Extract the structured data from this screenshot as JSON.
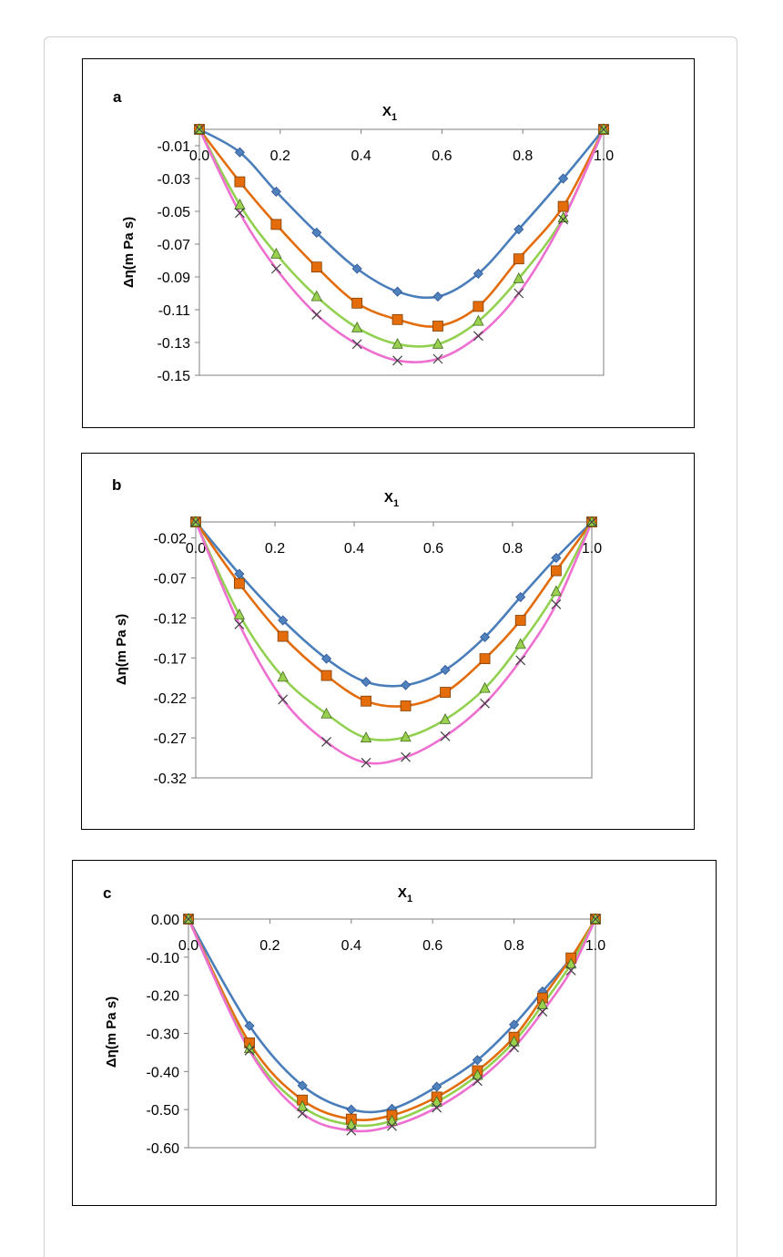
{
  "colors": {
    "series1": "#4a7ebb",
    "series2": "#e36c0a",
    "series3": "#92d050",
    "series4": "#ee6fd0"
  },
  "chart_data": [
    {
      "type": "line",
      "panel_label": "a",
      "xlabel": "X",
      "xlabel_sub": "1",
      "ylabel": "Δη(m Pa s)",
      "xlim": [
        0.0,
        1.0
      ],
      "ylim": [
        -0.15,
        0.0
      ],
      "xticks": [
        "0.0",
        "0.2",
        "0.4",
        "0.6",
        "0.8",
        "1.0"
      ],
      "yticks": [
        "-0.01",
        "-0.03",
        "-0.05",
        "-0.07",
        "-0.09",
        "-0.11",
        "-0.13",
        "-0.15"
      ],
      "series": [
        {
          "marker": "diamond",
          "x": [
            0.0,
            0.1,
            0.19,
            0.29,
            0.39,
            0.49,
            0.59,
            0.69,
            0.79,
            0.9,
            1.0
          ],
          "values": [
            0.0,
            -0.014,
            -0.038,
            -0.063,
            -0.085,
            -0.099,
            -0.102,
            -0.088,
            -0.061,
            -0.03,
            0.0
          ]
        },
        {
          "marker": "square",
          "x": [
            0.0,
            0.1,
            0.19,
            0.29,
            0.39,
            0.49,
            0.59,
            0.69,
            0.79,
            0.9,
            1.0
          ],
          "values": [
            0.0,
            -0.032,
            -0.058,
            -0.084,
            -0.106,
            -0.116,
            -0.12,
            -0.108,
            -0.079,
            -0.047,
            0.0
          ]
        },
        {
          "marker": "triangle",
          "x": [
            0.0,
            0.1,
            0.19,
            0.29,
            0.39,
            0.49,
            0.59,
            0.69,
            0.79,
            0.9,
            1.0
          ],
          "values": [
            0.0,
            -0.046,
            -0.076,
            -0.102,
            -0.121,
            -0.131,
            -0.131,
            -0.117,
            -0.091,
            -0.054,
            0.0
          ]
        },
        {
          "marker": "cross",
          "x": [
            0.0,
            0.1,
            0.19,
            0.29,
            0.39,
            0.49,
            0.59,
            0.69,
            0.79,
            0.9,
            1.0
          ],
          "values": [
            0.0,
            -0.051,
            -0.085,
            -0.113,
            -0.131,
            -0.141,
            -0.14,
            -0.126,
            -0.1,
            -0.055,
            0.0
          ]
        }
      ]
    },
    {
      "type": "line",
      "panel_label": "b",
      "xlabel": "X",
      "xlabel_sub": "1",
      "ylabel": "Δη(m Pa s)",
      "xlim": [
        0.0,
        1.0
      ],
      "ylim": [
        -0.32,
        0.0
      ],
      "xticks": [
        "0.0",
        "0.2",
        "0.4",
        "0.6",
        "0.8",
        "1.0"
      ],
      "yticks": [
        "-0.02",
        "-0.07",
        "-0.12",
        "-0.17",
        "-0.22",
        "-0.27",
        "-0.32"
      ],
      "series": [
        {
          "marker": "diamond",
          "x": [
            0.0,
            0.11,
            0.22,
            0.33,
            0.43,
            0.53,
            0.63,
            0.73,
            0.82,
            0.91,
            1.0
          ],
          "values": [
            0.0,
            -0.065,
            -0.123,
            -0.171,
            -0.2,
            -0.204,
            -0.185,
            -0.144,
            -0.094,
            -0.045,
            0.0
          ]
        },
        {
          "marker": "square",
          "x": [
            0.0,
            0.11,
            0.22,
            0.33,
            0.43,
            0.53,
            0.63,
            0.73,
            0.82,
            0.91,
            1.0
          ],
          "values": [
            0.0,
            -0.077,
            -0.143,
            -0.192,
            -0.224,
            -0.23,
            -0.213,
            -0.171,
            -0.123,
            -0.061,
            0.0
          ]
        },
        {
          "marker": "triangle",
          "x": [
            0.0,
            0.11,
            0.22,
            0.33,
            0.43,
            0.53,
            0.63,
            0.73,
            0.82,
            0.91,
            1.0
          ],
          "values": [
            0.0,
            -0.116,
            -0.194,
            -0.24,
            -0.27,
            -0.269,
            -0.247,
            -0.208,
            -0.153,
            -0.087,
            0.0
          ]
        },
        {
          "marker": "cross",
          "x": [
            0.0,
            0.11,
            0.22,
            0.33,
            0.43,
            0.53,
            0.63,
            0.73,
            0.82,
            0.91,
            1.0
          ],
          "values": [
            0.0,
            -0.128,
            -0.222,
            -0.275,
            -0.301,
            -0.294,
            -0.268,
            -0.227,
            -0.173,
            -0.103,
            0.0
          ]
        }
      ]
    },
    {
      "type": "line",
      "panel_label": "c",
      "xlabel": "X",
      "xlabel_sub": "1",
      "ylabel": "Δη(m Pa s)",
      "xlim": [
        0.0,
        1.0
      ],
      "ylim": [
        -0.6,
        0.0
      ],
      "xticks": [
        "0.0",
        "0.2",
        "0.4",
        "0.6",
        "0.8",
        "1.0"
      ],
      "yticks": [
        "0.00",
        "-0.10",
        "-0.20",
        "-0.30",
        "-0.40",
        "-0.50",
        "-0.60"
      ],
      "series": [
        {
          "marker": "diamond",
          "x": [
            0.0,
            0.15,
            0.28,
            0.4,
            0.5,
            0.61,
            0.71,
            0.8,
            0.87,
            0.94,
            1.0
          ],
          "values": [
            0.0,
            -0.28,
            -0.437,
            -0.5,
            -0.498,
            -0.44,
            -0.37,
            -0.277,
            -0.19,
            -0.102,
            0.0
          ]
        },
        {
          "marker": "square",
          "x": [
            0.0,
            0.15,
            0.28,
            0.4,
            0.5,
            0.61,
            0.71,
            0.8,
            0.87,
            0.94,
            1.0
          ],
          "values": [
            0.0,
            -0.325,
            -0.475,
            -0.525,
            -0.515,
            -0.467,
            -0.398,
            -0.31,
            -0.207,
            -0.102,
            0.0
          ]
        },
        {
          "marker": "triangle",
          "x": [
            0.0,
            0.15,
            0.28,
            0.4,
            0.5,
            0.61,
            0.71,
            0.8,
            0.87,
            0.94,
            1.0
          ],
          "values": [
            0.0,
            -0.34,
            -0.492,
            -0.54,
            -0.53,
            -0.48,
            -0.41,
            -0.322,
            -0.225,
            -0.118,
            0.0
          ]
        },
        {
          "marker": "cross",
          "x": [
            0.0,
            0.15,
            0.28,
            0.4,
            0.5,
            0.61,
            0.71,
            0.8,
            0.87,
            0.94,
            1.0
          ],
          "values": [
            0.0,
            -0.345,
            -0.51,
            -0.555,
            -0.543,
            -0.495,
            -0.425,
            -0.337,
            -0.243,
            -0.135,
            0.0
          ]
        }
      ]
    }
  ]
}
